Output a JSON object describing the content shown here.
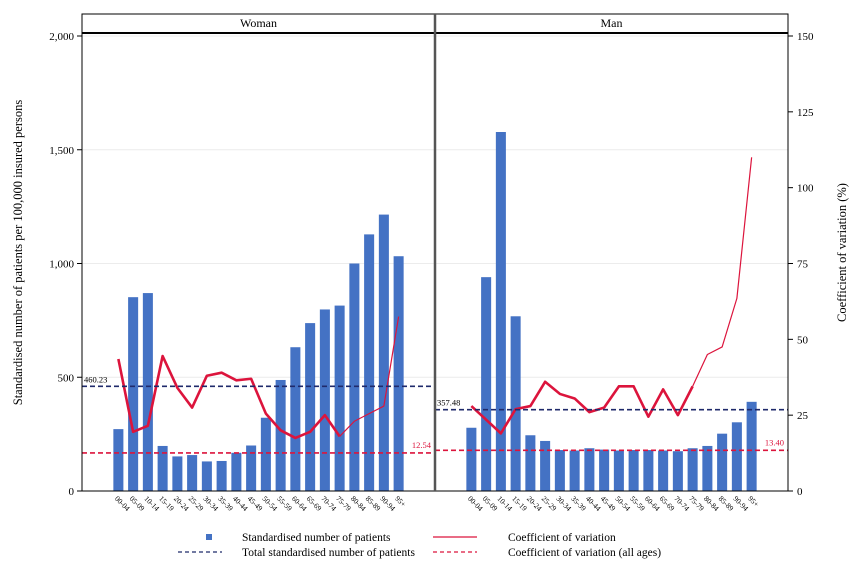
{
  "chart_data": {
    "type": "bar",
    "ylabel": "Standardised number of patients per 100,000 insured persons",
    "y2label": "Coefficient of variation (%)",
    "ylim": [
      0,
      2000
    ],
    "y2lim": [
      0,
      150
    ],
    "yticks": [
      "0",
      "500",
      "1,000",
      "1,500",
      "2,000"
    ],
    "y2ticks": [
      "0",
      "25",
      "50",
      "75",
      "100",
      "125",
      "150"
    ],
    "grid": true,
    "legend_position": "bottom",
    "categories": [
      "00-04",
      "05-09",
      "10-14",
      "15-19",
      "20-24",
      "25-29",
      "30-34",
      "35-39",
      "40-44",
      "45-49",
      "50-54",
      "55-59",
      "60-64",
      "65-69",
      "70-74",
      "75-79",
      "80-84",
      "85-89",
      "90-94",
      "95+"
    ],
    "panels": [
      {
        "title": "Woman",
        "bars": [
          272,
          852,
          870,
          198,
          152,
          158,
          130,
          132,
          168,
          200,
          322,
          488,
          632,
          738,
          798,
          815,
          1000,
          1128,
          1215,
          1032
        ],
        "cv": [
          43.5,
          19.5,
          21.5,
          44.5,
          34,
          27.5,
          38,
          39,
          36.5,
          37,
          25.5,
          20,
          17.5,
          19.5,
          25,
          18,
          23,
          25.5,
          28,
          57.5
        ],
        "total_line": 460.23,
        "total_label": "460.23",
        "cv_all": 12.54,
        "cv_all_label": "12.54"
      },
      {
        "title": "Man",
        "bars": [
          278,
          940,
          1578,
          768,
          245,
          220,
          180,
          178,
          188,
          182,
          178,
          180,
          180,
          178,
          175,
          188,
          198,
          252,
          302,
          392
        ],
        "cv": [
          28,
          23.5,
          19,
          27,
          28,
          36,
          32,
          30.5,
          26,
          27.5,
          34.5,
          34.5,
          24.5,
          33.5,
          25,
          34.5,
          45,
          47.5,
          63.5,
          110
        ],
        "total_line": 357.48,
        "total_label": "357.48",
        "cv_all": 13.4,
        "cv_all_label": "13.40"
      }
    ],
    "series": [
      {
        "name": "Standardised number of patients",
        "kind": "bar",
        "color": "#4472C4"
      },
      {
        "name": "Coefficient of variation",
        "kind": "line",
        "color": "#DC143C"
      },
      {
        "name": "Total standardised number of patients",
        "kind": "dashed",
        "color": "#1F2A6B"
      },
      {
        "name": "Coefficient of variation (all ages)",
        "kind": "dashed",
        "color": "#DC143C"
      }
    ]
  }
}
